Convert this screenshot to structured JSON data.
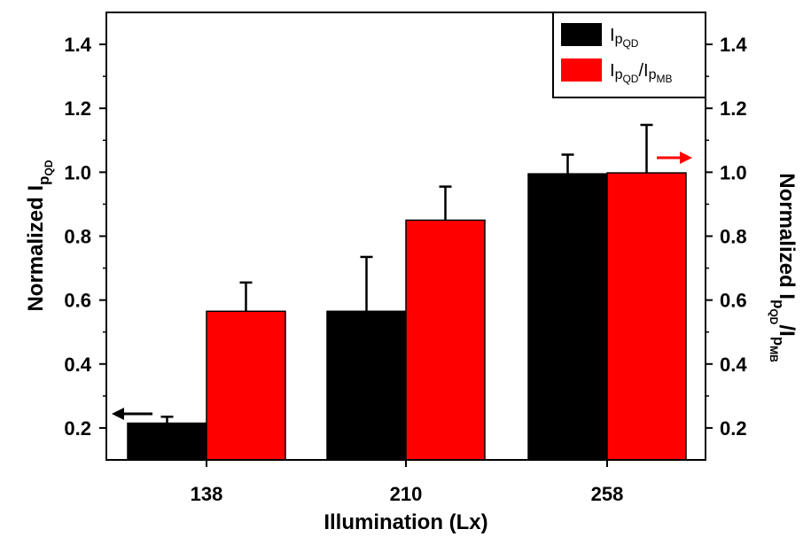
{
  "chart_data": {
    "type": "bar",
    "categories": [
      "138",
      "210",
      "258"
    ],
    "xlabel": "Illumination (Lx)",
    "ylabel_left": {
      "main": "Normalized I",
      "sub": "p",
      "subsub": "QD"
    },
    "ylabel_right": {
      "main": "Normalized I",
      "parts": [
        "p",
        "QD",
        "/I",
        "p",
        "MB"
      ]
    },
    "ylim": [
      0.1,
      1.5
    ],
    "yticks": [
      0.2,
      0.4,
      0.6,
      0.8,
      1.0,
      1.2,
      1.4
    ],
    "ytick_labels": [
      "0.2",
      "0.4",
      "0.6",
      "0.8",
      "1.0",
      "1.2",
      "1.4"
    ],
    "series": [
      {
        "name": "Ip_QD",
        "legend": {
          "main": "I",
          "sub": "p",
          "subsub": "QD"
        },
        "color": "#000000",
        "axis": "left",
        "values": [
          0.215,
          0.565,
          0.995
        ],
        "errors": [
          0.02,
          0.17,
          0.06
        ]
      },
      {
        "name": "Ip_QD/Ip_MB",
        "legend": {
          "parts": [
            "I",
            "p",
            "QD",
            "/I",
            "p",
            "MB"
          ]
        },
        "color": "#ff0000",
        "axis": "right",
        "values": [
          0.565,
          0.85,
          0.998
        ],
        "errors": [
          0.09,
          0.105,
          0.15
        ]
      }
    ],
    "arrows": [
      {
        "points_to": "left",
        "color": "#000000",
        "at_series": "Ip_QD"
      },
      {
        "points_to": "right",
        "color": "#ff0000",
        "at_series": "Ip_QD/Ip_MB"
      }
    ],
    "legend_position": "top-right",
    "grid": false
  }
}
